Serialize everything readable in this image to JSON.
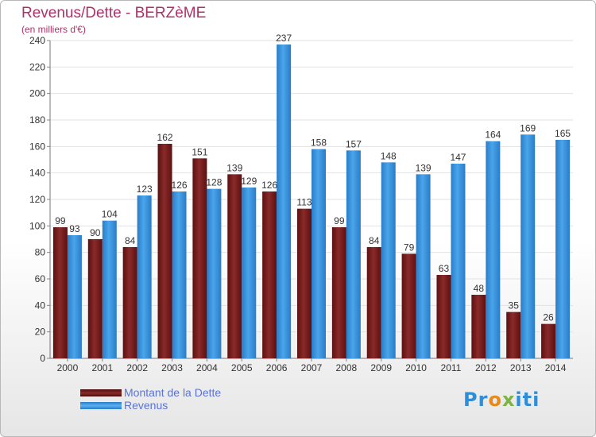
{
  "chart_data": {
    "type": "bar",
    "title": "Revenus/Dette - BERZèME",
    "subtitle": "(en milliers d'€)",
    "categories": [
      "2000",
      "2001",
      "2002",
      "2003",
      "2004",
      "2005",
      "2006",
      "2007",
      "2008",
      "2009",
      "2010",
      "2011",
      "2012",
      "2013",
      "2014"
    ],
    "series": [
      {
        "name": "Montant de la Dette",
        "color": "#7a1e1e",
        "values": [
          99,
          90,
          84,
          162,
          151,
          139,
          126,
          113,
          99,
          84,
          79,
          63,
          48,
          35,
          26
        ]
      },
      {
        "name": "Revenus",
        "color": "#3a96dd",
        "values": [
          93,
          104,
          123,
          126,
          128,
          129,
          237,
          158,
          157,
          148,
          139,
          147,
          164,
          169,
          165
        ]
      }
    ],
    "ylim": [
      0,
      240
    ],
    "yticks": [
      0,
      20,
      40,
      60,
      80,
      100,
      120,
      140,
      160,
      180,
      200,
      220,
      240
    ],
    "grid": true,
    "legend_position": "bottom-left"
  },
  "logo": {
    "text": "Proxiti"
  }
}
